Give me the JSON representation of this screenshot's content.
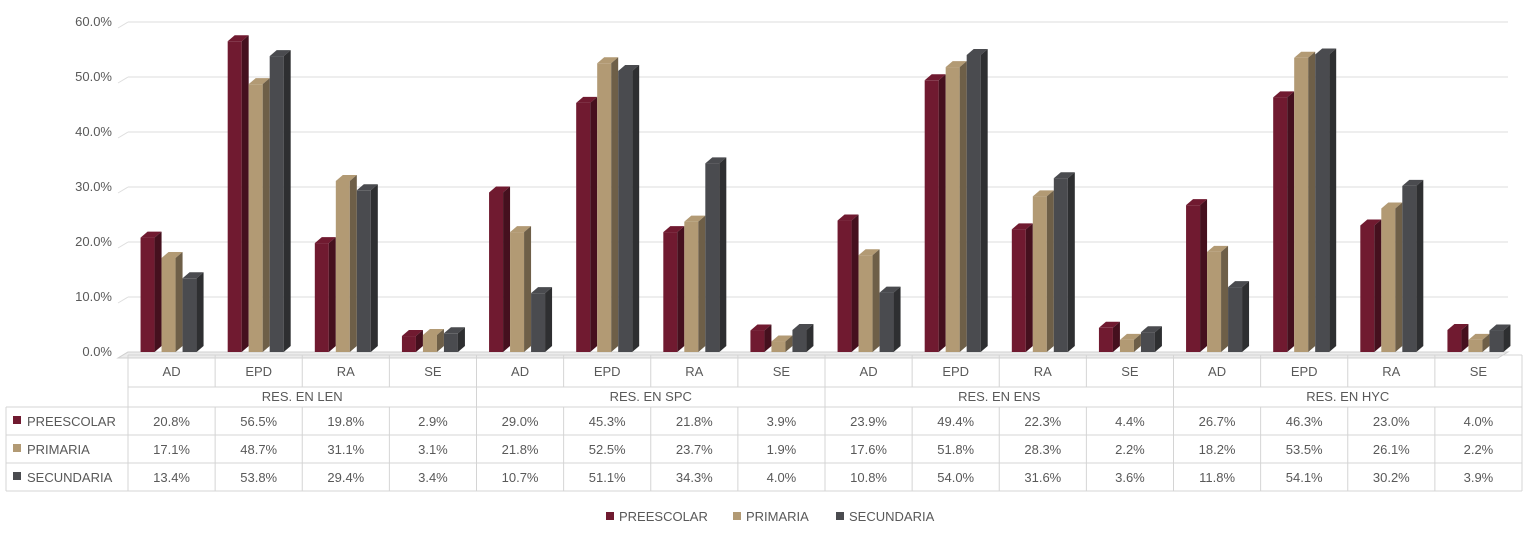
{
  "chart_data": {
    "type": "bar",
    "ylim": [
      0,
      60
    ],
    "yticks": [
      "0.0%",
      "10.0%",
      "20.0%",
      "30.0%",
      "40.0%",
      "50.0%",
      "60.0%"
    ],
    "groups": [
      {
        "label": "RES. EN LEN",
        "categories": [
          "AD",
          "EPD",
          "RA",
          "SE"
        ]
      },
      {
        "label": "RES. EN SPC",
        "categories": [
          "AD",
          "EPD",
          "RA",
          "SE"
        ]
      },
      {
        "label": "RES. EN ENS",
        "categories": [
          "AD",
          "EPD",
          "RA",
          "SE"
        ]
      },
      {
        "label": "RES. EN HYC",
        "categories": [
          "AD",
          "EPD",
          "RA",
          "SE"
        ]
      }
    ],
    "series": [
      {
        "name": "PREESCOLAR",
        "color": "#701a30",
        "values": [
          20.8,
          56.5,
          19.8,
          2.9,
          29.0,
          45.3,
          21.8,
          3.9,
          23.9,
          49.4,
          22.3,
          4.4,
          26.7,
          46.3,
          23.0,
          4.0
        ],
        "labels": [
          "20.8%",
          "56.5%",
          "19.8%",
          "2.9%",
          "29.0%",
          "45.3%",
          "21.8%",
          "3.9%",
          "23.9%",
          "49.4%",
          "22.3%",
          "4.4%",
          "26.7%",
          "46.3%",
          "23.0%",
          "4.0%"
        ]
      },
      {
        "name": "PRIMARIA",
        "color": "#b29a74",
        "values": [
          17.1,
          48.7,
          31.1,
          3.1,
          21.8,
          52.5,
          23.7,
          1.9,
          17.6,
          51.8,
          28.3,
          2.2,
          18.2,
          53.5,
          26.1,
          2.2
        ],
        "labels": [
          "17.1%",
          "48.7%",
          "31.1%",
          "3.1%",
          "21.8%",
          "52.5%",
          "23.7%",
          "1.9%",
          "17.6%",
          "51.8%",
          "28.3%",
          "2.2%",
          "18.2%",
          "53.5%",
          "26.1%",
          "2.2%"
        ]
      },
      {
        "name": "SECUNDARIA",
        "color": "#4a4b4f",
        "values": [
          13.4,
          53.8,
          29.4,
          3.4,
          10.7,
          51.1,
          34.3,
          4.0,
          10.8,
          54.0,
          31.6,
          3.6,
          11.8,
          54.1,
          30.2,
          3.9
        ],
        "labels": [
          "13.4%",
          "53.8%",
          "29.4%",
          "3.4%",
          "10.7%",
          "51.1%",
          "34.3%",
          "4.0%",
          "10.8%",
          "54.0%",
          "31.6%",
          "3.6%",
          "11.8%",
          "54.1%",
          "30.2%",
          "3.9%"
        ]
      }
    ],
    "grid": true,
    "legend": "bottom-center",
    "data_table": true
  }
}
